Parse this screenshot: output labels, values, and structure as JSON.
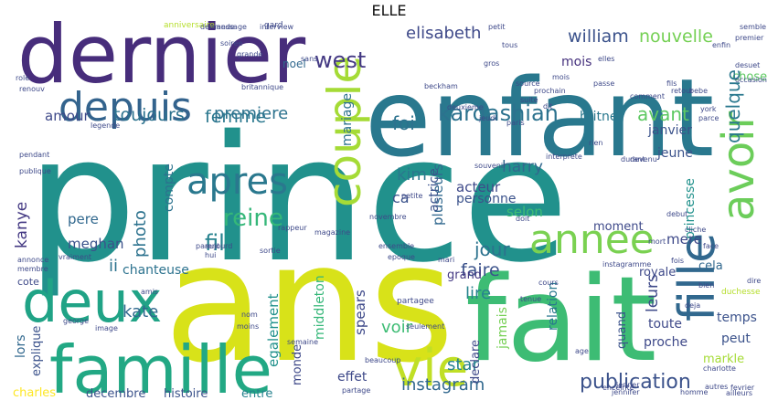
{
  "title": "ELLE",
  "words": [
    {
      "text": "prince",
      "color": "#21918c"
    },
    {
      "text": "ans",
      "color": "#d8e219"
    },
    {
      "text": "enfant",
      "color": "#29788e"
    },
    {
      "text": "fait",
      "color": "#3dbc74"
    },
    {
      "text": "dernier",
      "color": "#472d7b"
    },
    {
      "text": "famille",
      "color": "#22a884"
    },
    {
      "text": "deux",
      "color": "#20a386"
    },
    {
      "text": "depuis",
      "color": "#33638d"
    },
    {
      "text": "vie",
      "color": "#c0df25"
    },
    {
      "text": "couple",
      "color": "#a5db36"
    },
    {
      "text": "fille",
      "color": "#31688e"
    },
    {
      "text": "avoir",
      "color": "#6ccd5a"
    },
    {
      "text": "annee",
      "color": "#7ad151"
    },
    {
      "text": "apres",
      "color": "#2a788e"
    },
    {
      "text": "kardashian",
      "color": "#2c728e"
    },
    {
      "text": "publication",
      "color": "#3b528b"
    },
    {
      "text": "femme",
      "color": "#2a778e"
    },
    {
      "text": "reine",
      "color": "#35b779"
    },
    {
      "text": "west",
      "color": "#443983"
    },
    {
      "text": "elisabeth",
      "color": "#3e4989"
    },
    {
      "text": "william",
      "color": "#3b528b"
    },
    {
      "text": "nouvelle",
      "color": "#75d054"
    },
    {
      "text": "mariage",
      "color": "#2c728e"
    },
    {
      "text": "noel",
      "color": "#31688e"
    },
    {
      "text": "toujours",
      "color": "#2c728e"
    },
    {
      "text": "amour",
      "color": "#3e4989"
    },
    {
      "text": "premiere",
      "color": "#2c728e"
    },
    {
      "text": "foi",
      "color": "#2c728e"
    },
    {
      "text": "mois",
      "color": "#46327e"
    },
    {
      "text": "chose",
      "color": "#5ec962"
    },
    {
      "text": "quelque",
      "color": "#2a788e"
    },
    {
      "text": "avant",
      "color": "#5ec962"
    },
    {
      "text": "britney",
      "color": "#2a788e"
    },
    {
      "text": "janvier",
      "color": "#3b528b"
    },
    {
      "text": "jeune",
      "color": "#3b528b"
    },
    {
      "text": "photo",
      "color": "#2c728e"
    },
    {
      "text": "compte",
      "color": "#2c728e"
    },
    {
      "text": "fil",
      "color": "#26828e"
    },
    {
      "text": "pere",
      "color": "#31688e"
    },
    {
      "text": "kanye",
      "color": "#443983"
    },
    {
      "text": "meghan",
      "color": "#3b528b"
    },
    {
      "text": "ii",
      "color": "#2c728e"
    },
    {
      "text": "chanteuse",
      "color": "#2c728e"
    },
    {
      "text": "kate",
      "color": "#31688e"
    },
    {
      "text": "lors",
      "color": "#31688e"
    },
    {
      "text": "explique",
      "color": "#3b528b"
    },
    {
      "text": "charles",
      "color": "#fde725"
    },
    {
      "text": "decembre",
      "color": "#3b528b"
    },
    {
      "text": "histoire",
      "color": "#3b528b"
    },
    {
      "text": "entre",
      "color": "#26828e"
    },
    {
      "text": "monde",
      "color": "#3e4989"
    },
    {
      "text": "middleton",
      "color": "#35b779"
    },
    {
      "text": "egalement",
      "color": "#21918c"
    },
    {
      "text": "spears",
      "color": "#3e4989"
    },
    {
      "text": "kim",
      "color": "#2a788e"
    },
    {
      "text": "ca",
      "color": "#3b528b"
    },
    {
      "text": "harry",
      "color": "#31688e"
    },
    {
      "text": "plusieurs",
      "color": "#31688e"
    },
    {
      "text": "acteur",
      "color": "#3e4989"
    },
    {
      "text": "actrice",
      "color": "#3b528b"
    },
    {
      "text": "selon",
      "color": "#3dbc74"
    },
    {
      "text": "personne",
      "color": "#3b528b"
    },
    {
      "text": "jour",
      "color": "#2c728e"
    },
    {
      "text": "faire",
      "color": "#3b528b"
    },
    {
      "text": "lire",
      "color": "#26828e"
    },
    {
      "text": "grand",
      "color": "#443983"
    },
    {
      "text": "voir",
      "color": "#3dbc74"
    },
    {
      "text": "jamais",
      "color": "#75d054"
    },
    {
      "text": "relation",
      "color": "#2a788e"
    },
    {
      "text": "star",
      "color": "#26828e"
    },
    {
      "text": "instagram",
      "color": "#31688e"
    },
    {
      "text": "effet",
      "color": "#3e4989"
    },
    {
      "text": "declare",
      "color": "#3e4989"
    },
    {
      "text": "moment",
      "color": "#3e4989"
    },
    {
      "text": "princesse",
      "color": "#21918c"
    },
    {
      "text": "mere",
      "color": "#3e4989"
    },
    {
      "text": "royale",
      "color": "#3e4989"
    },
    {
      "text": "cela",
      "color": "#31688e"
    },
    {
      "text": "quand",
      "color": "#3b528b"
    },
    {
      "text": "toute",
      "color": "#3e4989"
    },
    {
      "text": "proche",
      "color": "#3e4989"
    },
    {
      "text": "leurs",
      "color": "#3e4989"
    },
    {
      "text": "temps",
      "color": "#3b528b"
    },
    {
      "text": "peut",
      "color": "#3b528b"
    },
    {
      "text": "markle",
      "color": "#a5db36"
    },
    {
      "text": "cote",
      "color": "#3e4989"
    },
    {
      "text": "gard",
      "color": "#3e4989"
    },
    {
      "text": "anniversaire",
      "color": "#b5de2b"
    },
    {
      "text": "partagee",
      "color": "#3e4989"
    },
    {
      "text": "semble",
      "color": "#3e4989"
    },
    {
      "text": "premier",
      "color": "#3e4989"
    },
    {
      "text": "enfin",
      "color": "#3e4989"
    },
    {
      "text": "desuet",
      "color": "#3e4989"
    },
    {
      "text": "occasion",
      "color": "#3e4989"
    },
    {
      "text": "charlotte",
      "color": "#3e4989"
    },
    {
      "text": "beaucoup",
      "color": "#3e4989"
    },
    {
      "text": "instagramme",
      "color": "#3e4989"
    },
    {
      "text": "seulement",
      "color": "#3e4989"
    },
    {
      "text": "magazine",
      "color": "#3e4989"
    },
    {
      "text": "rappeur",
      "color": "#3e4989"
    },
    {
      "text": "ensemble",
      "color": "#3e4989"
    },
    {
      "text": "duchesse",
      "color": "#b5de2b"
    },
    {
      "text": "britannique",
      "color": "#3e4989"
    },
    {
      "text": "interview",
      "color": "#3e4989"
    },
    {
      "text": "message",
      "color": "#3e4989"
    },
    {
      "text": "demande",
      "color": "#3e4989"
    },
    {
      "text": "bebe",
      "color": "#3e4989"
    },
    {
      "text": "fils",
      "color": "#3e4989"
    },
    {
      "text": "debut",
      "color": "#3e4989"
    },
    {
      "text": "cliche",
      "color": "#3e4989"
    },
    {
      "text": "retour",
      "color": "#3e4989"
    },
    {
      "text": "passe",
      "color": "#3e4989"
    },
    {
      "text": "source",
      "color": "#3e4989"
    },
    {
      "text": "suite",
      "color": "#3e4989"
    },
    {
      "text": "sortie",
      "color": "#3e4989"
    },
    {
      "text": "amis",
      "color": "#3e4989"
    },
    {
      "text": "enceinte",
      "color": "#3e4989"
    },
    {
      "text": "mari",
      "color": "#3e4989"
    },
    {
      "text": "nom",
      "color": "#3e4989"
    },
    {
      "text": "aujourd",
      "color": "#3e4989"
    },
    {
      "text": "hui",
      "color": "#3e4989"
    },
    {
      "text": "legende",
      "color": "#3e4989"
    },
    {
      "text": "pendant",
      "color": "#3e4989"
    },
    {
      "text": "publique",
      "color": "#3e4989"
    },
    {
      "text": "vraiment",
      "color": "#3e4989"
    },
    {
      "text": "novembre",
      "color": "#3e4989"
    },
    {
      "text": "parent",
      "color": "#3e4989"
    },
    {
      "text": "george",
      "color": "#3e4989"
    },
    {
      "text": "image",
      "color": "#3e4989"
    },
    {
      "text": "semaine",
      "color": "#3e4989"
    },
    {
      "text": "epoque",
      "color": "#3e4989"
    },
    {
      "text": "deja",
      "color": "#3e4989"
    },
    {
      "text": "jennifer",
      "color": "#3e4989"
    },
    {
      "text": "fevrier",
      "color": "#3e4989"
    },
    {
      "text": "homme",
      "color": "#3e4989"
    },
    {
      "text": "autres",
      "color": "#3e4989"
    },
    {
      "text": "ailleurs",
      "color": "#3e4989"
    },
    {
      "text": "dire",
      "color": "#3e4989"
    },
    {
      "text": "moins",
      "color": "#3e4989"
    },
    {
      "text": "partage",
      "color": "#3e4989"
    },
    {
      "text": "jenner",
      "color": "#3e4989"
    },
    {
      "text": "age",
      "color": "#3e4989"
    },
    {
      "text": "beckham",
      "color": "#3e4989"
    },
    {
      "text": "rien",
      "color": "#3e4989"
    },
    {
      "text": "devenu",
      "color": "#3e4989"
    },
    {
      "text": "durant",
      "color": "#3e4989"
    },
    {
      "text": "interprete",
      "color": "#3e4989"
    },
    {
      "text": "souvenir",
      "color": "#3e4989"
    },
    {
      "text": "petite",
      "color": "#3e4989"
    },
    {
      "text": "mois",
      "color": "#3e4989"
    },
    {
      "text": "role",
      "color": "#3e4989"
    },
    {
      "text": "renouv",
      "color": "#3e4989"
    },
    {
      "text": "membre",
      "color": "#3e4989"
    },
    {
      "text": "annonce",
      "color": "#3e4989"
    },
    {
      "text": "soiree",
      "color": "#3e4989"
    },
    {
      "text": "gros",
      "color": "#3e4989"
    },
    {
      "text": "tous",
      "color": "#3e4989"
    },
    {
      "text": "paris",
      "color": "#3e4989"
    },
    {
      "text": "york",
      "color": "#3e4989"
    },
    {
      "text": "comment",
      "color": "#3e4989"
    },
    {
      "text": "elles",
      "color": "#3e4989"
    },
    {
      "text": "jeudi",
      "color": "#3e4989"
    },
    {
      "text": "dit",
      "color": "#3e4989"
    },
    {
      "text": "deuxieme",
      "color": "#3e4989"
    },
    {
      "text": "prochain",
      "color": "#3e4989"
    },
    {
      "text": "grande",
      "color": "#3e4989"
    },
    {
      "text": "petit",
      "color": "#3e4989"
    },
    {
      "text": "parce",
      "color": "#3e4989"
    },
    {
      "text": "sans",
      "color": "#3e4989"
    },
    {
      "text": "fois",
      "color": "#3e4989"
    },
    {
      "text": "bien",
      "color": "#3e4989"
    },
    {
      "text": "doit",
      "color": "#3e4989"
    },
    {
      "text": "mort",
      "color": "#3e4989"
    },
    {
      "text": "face",
      "color": "#3e4989"
    },
    {
      "text": "cours",
      "color": "#3e4989"
    },
    {
      "text": "tenue",
      "color": "#3e4989"
    }
  ]
}
